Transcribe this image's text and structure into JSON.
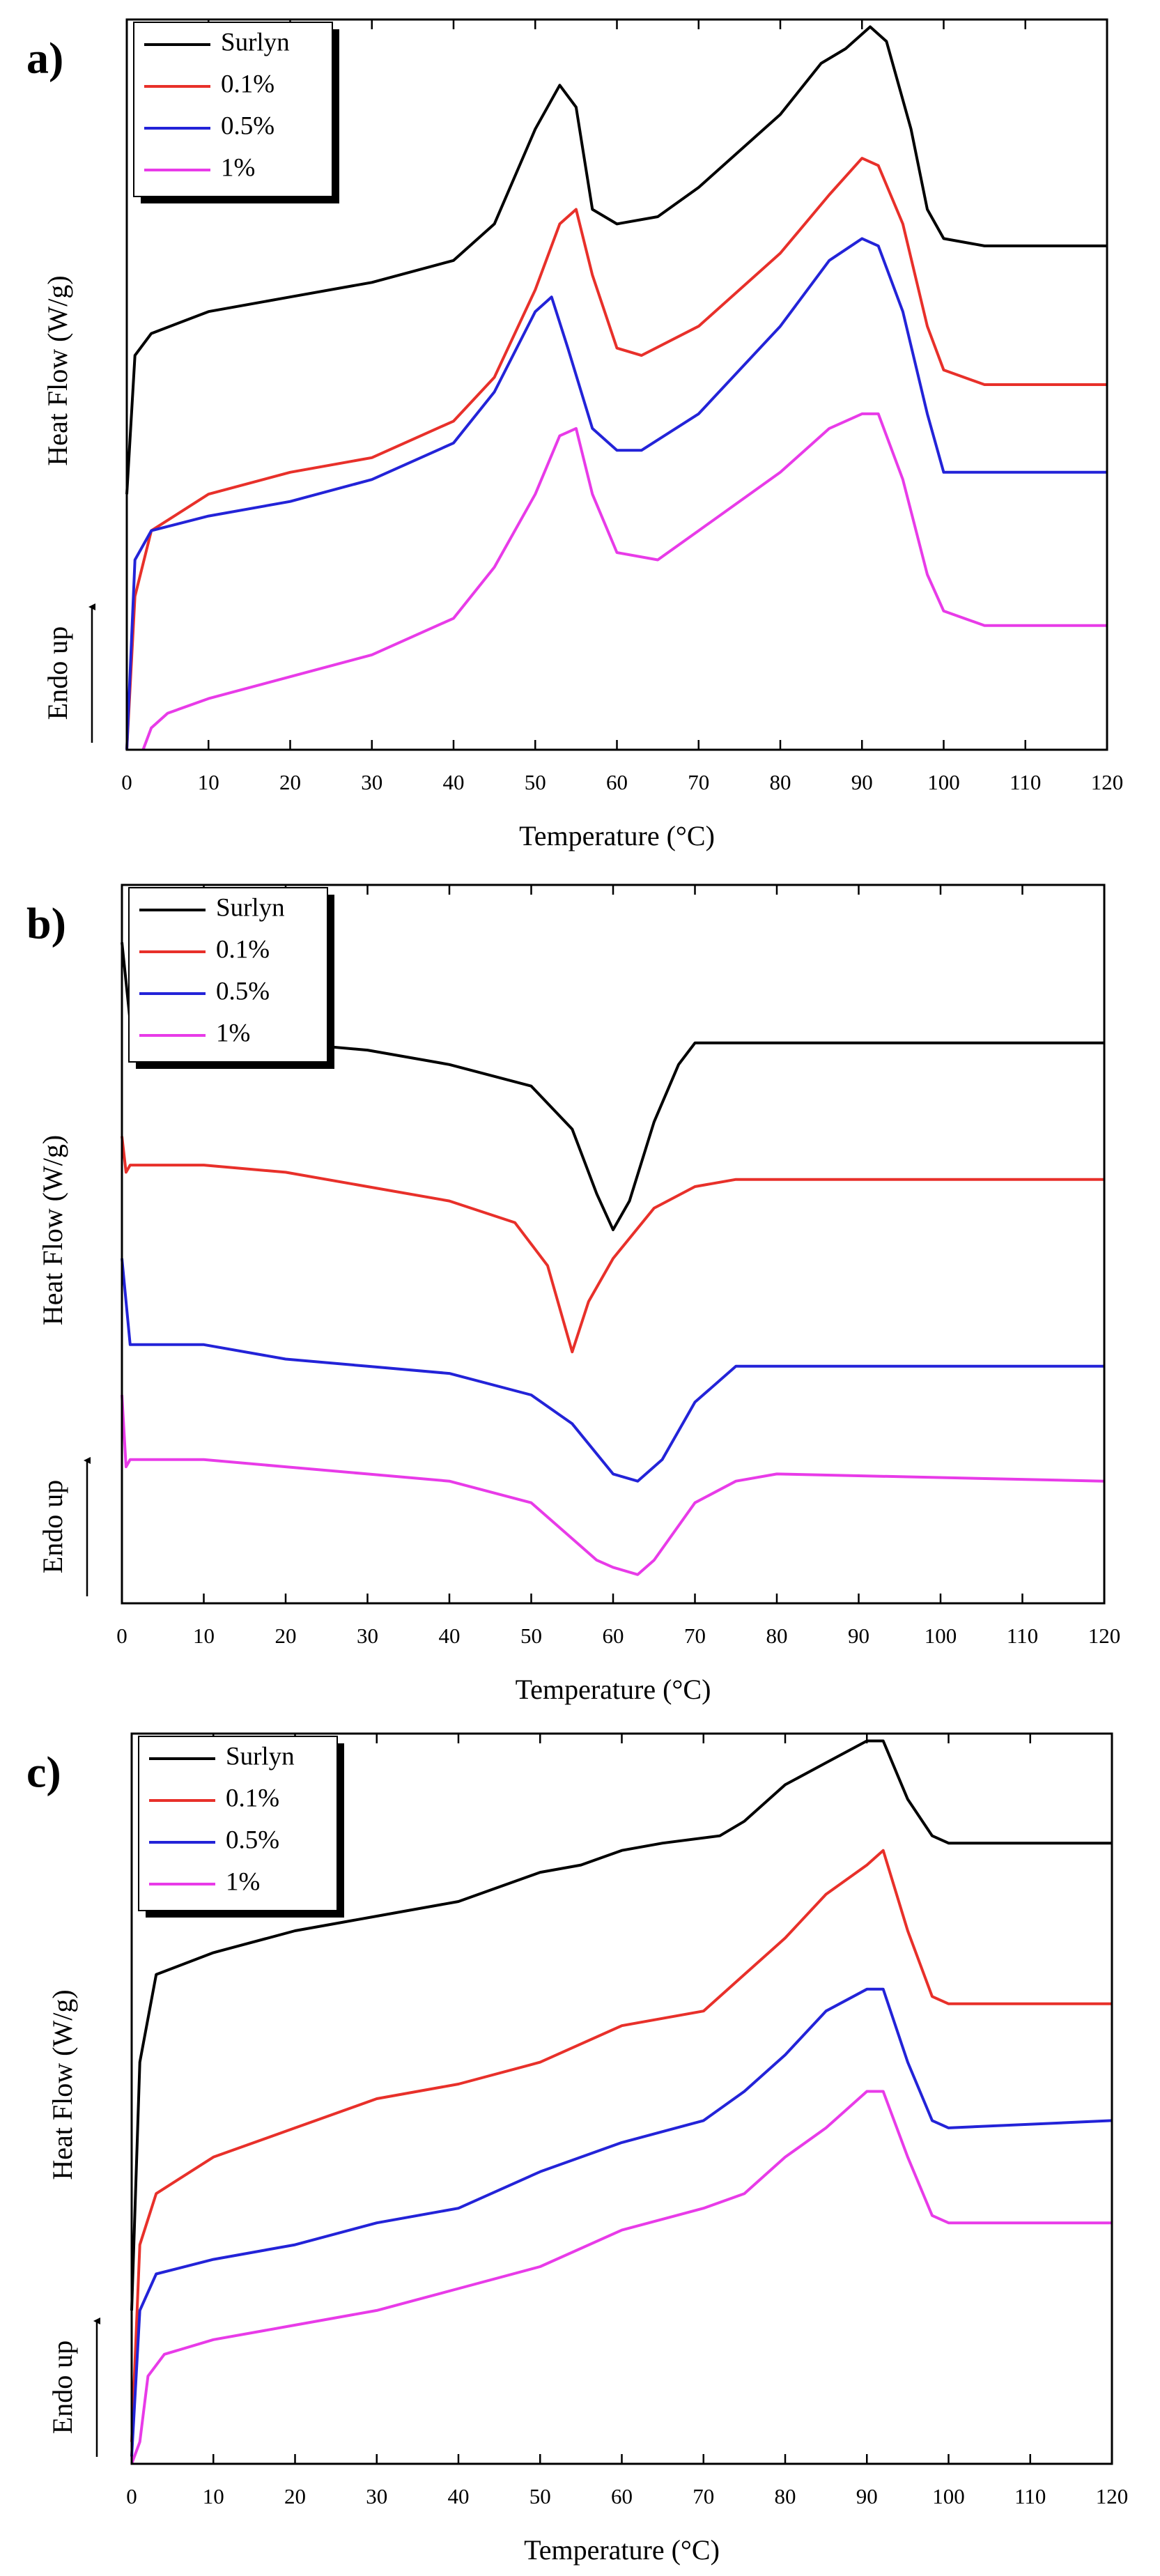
{
  "chart_data": [
    {
      "type": "line",
      "label": "a)",
      "xlabel": "Temperature (°C)",
      "ylabel": "Heat Flow (W/g)",
      "annotation": "Endo up",
      "xlim": [
        0,
        120
      ],
      "xticks": [
        0,
        10,
        20,
        30,
        40,
        50,
        60,
        70,
        80,
        90,
        100,
        110,
        120
      ],
      "ylim": [
        0,
        100
      ],
      "series": [
        {
          "name": "Surlyn",
          "color": "#000000",
          "x": [
            0,
            1,
            3,
            10,
            20,
            30,
            40,
            45,
            50,
            53,
            55,
            57,
            60,
            65,
            70,
            80,
            85,
            88,
            91,
            93,
            96,
            98,
            100,
            105,
            120
          ],
          "values": [
            35,
            54,
            57,
            60,
            62,
            64,
            67,
            72,
            85,
            91,
            88,
            74,
            72,
            73,
            77,
            87,
            94,
            96,
            99,
            97,
            85,
            74,
            70,
            69,
            69
          ]
        },
        {
          "name": "0.1%",
          "color": "#e8302a",
          "x": [
            0,
            1,
            3,
            10,
            20,
            30,
            40,
            45,
            50,
            53,
            55,
            57,
            60,
            63,
            70,
            80,
            86,
            90,
            92,
            95,
            98,
            100,
            105,
            120
          ],
          "values": [
            0,
            21,
            30,
            35,
            38,
            40,
            45,
            51,
            63,
            72,
            74,
            65,
            55,
            54,
            58,
            68,
            76,
            81,
            80,
            72,
            58,
            52,
            50,
            50
          ]
        },
        {
          "name": "0.5%",
          "color": "#2323d8",
          "x": [
            0,
            1,
            3,
            10,
            20,
            30,
            40,
            45,
            50,
            52,
            54,
            57,
            60,
            63,
            70,
            80,
            86,
            90,
            92,
            95,
            98,
            100,
            105,
            120
          ],
          "values": [
            0,
            26,
            30,
            32,
            34,
            37,
            42,
            49,
            60,
            62,
            55,
            44,
            41,
            41,
            46,
            58,
            67,
            70,
            69,
            60,
            46,
            38,
            38,
            38
          ]
        },
        {
          "name": "1%",
          "color": "#e83be8",
          "x": [
            2,
            3,
            5,
            10,
            20,
            30,
            40,
            45,
            50,
            53,
            55,
            57,
            60,
            65,
            70,
            80,
            86,
            90,
            92,
            95,
            98,
            100,
            105,
            120
          ],
          "values": [
            0,
            3,
            5,
            7,
            10,
            13,
            18,
            25,
            35,
            43,
            44,
            35,
            27,
            26,
            30,
            38,
            44,
            46,
            46,
            37,
            24,
            19,
            17,
            17
          ]
        }
      ]
    },
    {
      "type": "line",
      "label": "b)",
      "xlabel": "Temperature (°C)",
      "ylabel": "Heat Flow (W/g)",
      "annotation": "Endo up",
      "xlim": [
        0,
        120
      ],
      "xticks": [
        0,
        10,
        20,
        30,
        40,
        50,
        60,
        70,
        80,
        90,
        100,
        110,
        120
      ],
      "ylim": [
        0,
        100
      ],
      "series": [
        {
          "name": "Surlyn",
          "color": "#000000",
          "x": [
            0,
            1,
            10,
            20,
            30,
            40,
            50,
            55,
            58,
            60,
            62,
            65,
            68,
            70,
            80,
            120
          ],
          "values": [
            92,
            81,
            79,
            78,
            77,
            75,
            72,
            66,
            57,
            52,
            56,
            67,
            75,
            78,
            78,
            78
          ]
        },
        {
          "name": "0.1%",
          "color": "#e8302a",
          "x": [
            0,
            0.5,
            1,
            10,
            20,
            30,
            40,
            48,
            52,
            55,
            57,
            60,
            65,
            70,
            75,
            120
          ],
          "values": [
            65,
            60,
            61,
            61,
            60,
            58,
            56,
            53,
            47,
            35,
            42,
            48,
            55,
            58,
            59,
            59
          ]
        },
        {
          "name": "0.5%",
          "color": "#2323d8",
          "x": [
            0,
            1,
            10,
            20,
            30,
            40,
            50,
            55,
            60,
            63,
            66,
            70,
            75,
            80,
            120
          ],
          "values": [
            48,
            36,
            36,
            34,
            33,
            32,
            29,
            25,
            18,
            17,
            20,
            28,
            33,
            33,
            33
          ]
        },
        {
          "name": "1%",
          "color": "#e83be8",
          "x": [
            0,
            0.5,
            1,
            10,
            20,
            30,
            40,
            50,
            54,
            56,
            58,
            60,
            63,
            65,
            70,
            75,
            80,
            120
          ],
          "values": [
            29,
            19,
            20,
            20,
            19,
            18,
            17,
            14,
            10,
            8,
            6,
            5,
            4,
            6,
            14,
            17,
            18,
            17
          ]
        }
      ]
    },
    {
      "type": "line",
      "label": "c)",
      "xlabel": "Temperature (°C)",
      "ylabel": "Heat Flow (W/g)",
      "annotation": "Endo up",
      "xlim": [
        0,
        120
      ],
      "xticks": [
        0,
        10,
        20,
        30,
        40,
        50,
        60,
        70,
        80,
        90,
        100,
        110,
        120
      ],
      "ylim": [
        0,
        100
      ],
      "series": [
        {
          "name": "Surlyn",
          "color": "#000000",
          "x": [
            0,
            1,
            3,
            10,
            20,
            30,
            40,
            50,
            55,
            60,
            65,
            72,
            75,
            80,
            85,
            90,
            92,
            95,
            98,
            100,
            120
          ],
          "values": [
            21,
            55,
            67,
            70,
            73,
            75,
            77,
            81,
            82,
            84,
            85,
            86,
            88,
            93,
            96,
            99,
            99,
            91,
            86,
            85,
            85
          ]
        },
        {
          "name": "0.1%",
          "color": "#e8302a",
          "x": [
            0,
            1,
            3,
            10,
            20,
            30,
            40,
            50,
            60,
            70,
            75,
            80,
            85,
            90,
            92,
            95,
            98,
            100,
            120
          ],
          "values": [
            3,
            30,
            37,
            42,
            46,
            50,
            52,
            55,
            60,
            62,
            67,
            72,
            78,
            82,
            84,
            73,
            64,
            63,
            63
          ]
        },
        {
          "name": "0.5%",
          "color": "#2323d8",
          "x": [
            0,
            1,
            3,
            10,
            20,
            30,
            40,
            50,
            60,
            70,
            75,
            80,
            85,
            90,
            92,
            95,
            98,
            100,
            120
          ],
          "values": [
            1,
            21,
            26,
            28,
            30,
            33,
            35,
            40,
            44,
            47,
            51,
            56,
            62,
            65,
            65,
            55,
            47,
            46,
            47
          ]
        },
        {
          "name": "1%",
          "color": "#e83be8",
          "x": [
            0,
            1,
            2,
            4,
            10,
            20,
            30,
            40,
            50,
            60,
            70,
            75,
            80,
            85,
            90,
            92,
            95,
            98,
            100,
            120
          ],
          "values": [
            0,
            3,
            12,
            15,
            17,
            19,
            21,
            24,
            27,
            32,
            35,
            37,
            42,
            46,
            51,
            51,
            42,
            34,
            33,
            33
          ]
        }
      ]
    }
  ]
}
